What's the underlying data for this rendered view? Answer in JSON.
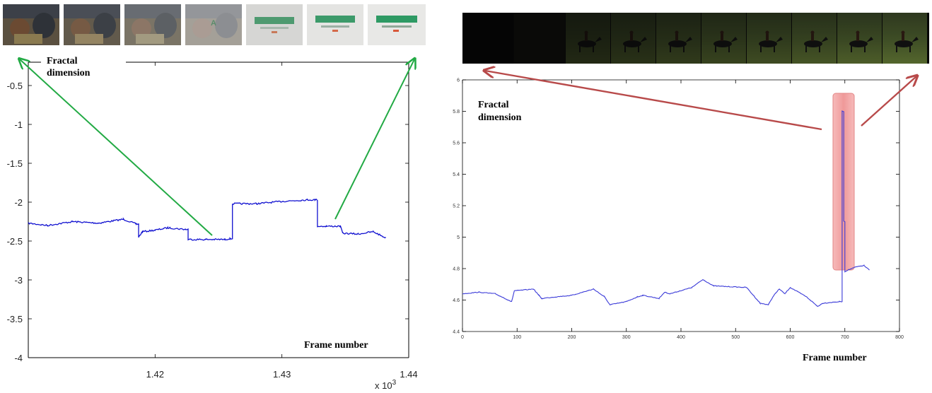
{
  "chart_data": [
    {
      "type": "line",
      "title": "",
      "ylabel_lines": [
        "Fractal",
        "dimension"
      ],
      "xlabel": "Frame number",
      "x_multiplier_label": "x 10",
      "x_multiplier_exp": "3",
      "xlim": [
        1.41,
        1.44
      ],
      "ylim": [
        -4,
        -0.2
      ],
      "xticks": [
        1.42,
        1.43,
        1.44
      ],
      "xtick_labels": [
        "1.42",
        "1.43",
        "1.44"
      ],
      "yticks": [
        -0.5,
        -1,
        -1.5,
        -2,
        -2.5,
        -3,
        -3.5,
        -4
      ],
      "ytick_labels": [
        "-0.5",
        "-1",
        "-1.5",
        "-2",
        "-2.5",
        "-3",
        "-3.5",
        "-4"
      ],
      "line_color": "#1010d0",
      "arrow_color": "#22aa44",
      "thumbnail_strip": "fade from dialogue scene to white Arcadia logo card",
      "series": [
        {
          "x": [
            1.41,
            1.4115,
            1.4135,
            1.4155,
            1.4175,
            1.4185,
            1.4187,
            1.419,
            1.42,
            1.421,
            1.4224,
            1.4226,
            1.424,
            1.4255,
            1.4259,
            1.4261,
            1.428,
            1.43,
            1.432,
            1.4326,
            1.4328,
            1.4335,
            1.4346,
            1.4348,
            1.436,
            1.4372,
            1.4382
          ],
          "y": [
            -2.27,
            -2.3,
            -2.25,
            -2.27,
            -2.22,
            -2.28,
            -2.45,
            -2.38,
            -2.36,
            -2.33,
            -2.35,
            -2.48,
            -2.48,
            -2.48,
            -2.47,
            -2.02,
            -2.02,
            -1.99,
            -1.97,
            -1.97,
            -2.31,
            -2.31,
            -2.31,
            -2.4,
            -2.41,
            -2.38,
            -2.46
          ]
        }
      ]
    },
    {
      "type": "line",
      "title": "",
      "ylabel_lines": [
        "Fractal",
        "dimension"
      ],
      "xlabel": "Frame number",
      "xlim": [
        0,
        800
      ],
      "ylim": [
        4.4,
        6
      ],
      "xticks": [
        0,
        100,
        200,
        300,
        400,
        500,
        600,
        700,
        800
      ],
      "xtick_labels": [
        "0",
        "100",
        "200",
        "300",
        "400",
        "500",
        "600",
        "700",
        "800"
      ],
      "yticks": [
        4.4,
        4.6,
        4.8,
        5,
        5.2,
        5.4,
        5.6,
        5.8,
        6
      ],
      "ytick_labels": [
        "4.4",
        "4.6",
        "4.8",
        "5",
        "5.2",
        "5.4",
        "5.6",
        "5.8",
        "6"
      ],
      "line_color": "#3a3ad8",
      "highlight_color": "#f08080",
      "arrow_color": "#b84a4a",
      "thumbnail_strip": "fade in from black to rider on horse in field",
      "series": [
        {
          "x": [
            0,
            30,
            60,
            90,
            95,
            100,
            130,
            140,
            145,
            170,
            200,
            230,
            240,
            260,
            270,
            300,
            320,
            330,
            360,
            370,
            380,
            420,
            440,
            460,
            520,
            545,
            560,
            570,
            580,
            590,
            600,
            630,
            650,
            660,
            690,
            695,
            698,
            700,
            705,
            720,
            735,
            745
          ],
          "y": [
            4.64,
            4.65,
            4.64,
            4.59,
            4.66,
            4.66,
            4.67,
            4.63,
            4.61,
            4.62,
            4.63,
            4.66,
            4.67,
            4.62,
            4.57,
            4.59,
            4.62,
            4.63,
            4.61,
            4.65,
            4.64,
            4.68,
            4.73,
            4.69,
            4.68,
            4.58,
            4.57,
            4.63,
            4.67,
            4.64,
            4.68,
            4.62,
            4.56,
            4.58,
            4.59,
            5.8,
            5.1,
            4.78,
            4.79,
            4.81,
            4.82,
            4.79
          ]
        }
      ]
    }
  ]
}
